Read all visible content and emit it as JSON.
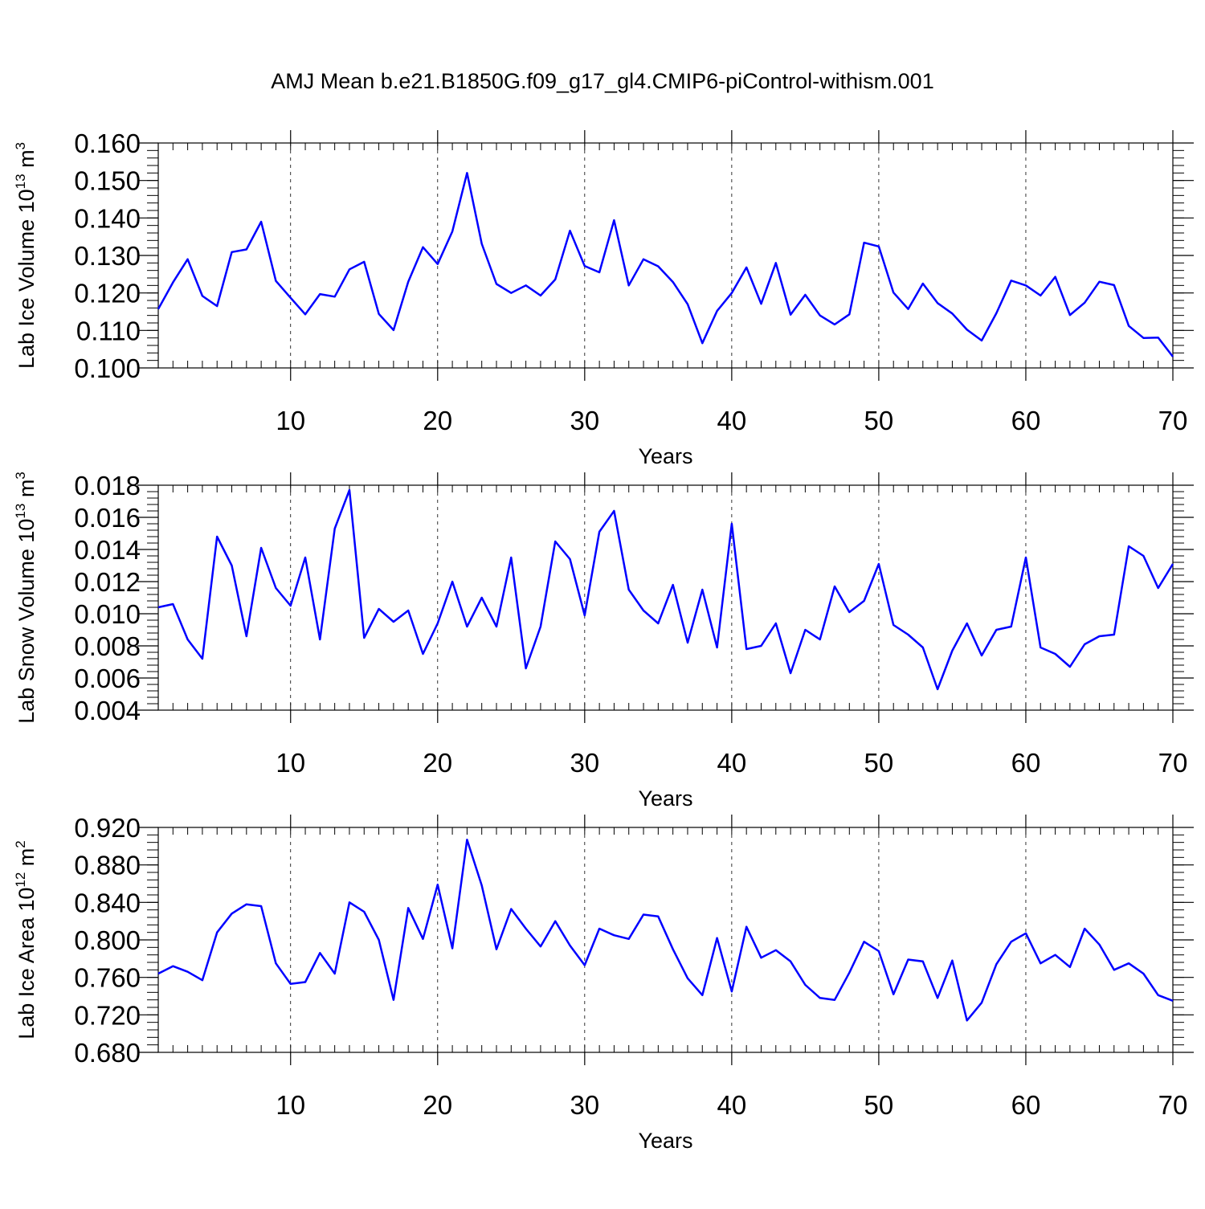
{
  "title": "AMJ Mean b.e21.B1850G.f09_g17_gl4.CMIP6-piControl-withism.001",
  "line_color": "#0000ff",
  "chart_data": [
    {
      "type": "line",
      "ylabel": {
        "text": "Lab Ice Volume 10",
        "exp": "13",
        "unit": " m",
        "unit_exp": "3"
      },
      "xlabel": "Years",
      "xlim": [
        1,
        70
      ],
      "ylim": [
        0.1,
        0.16
      ],
      "yticks": [
        0.1,
        0.11,
        0.12,
        0.13,
        0.14,
        0.15,
        0.16
      ],
      "ytick_labels": [
        "0.100",
        "0.110",
        "0.120",
        "0.130",
        "0.140",
        "0.150",
        "0.160"
      ],
      "xticks": [
        10,
        20,
        30,
        40,
        50,
        60,
        70
      ],
      "xtick_labels": [
        "10",
        "20",
        "30",
        "40",
        "50",
        "60",
        "70"
      ],
      "grid": "vertical-dashed",
      "series": [
        {
          "x": [
            1,
            2,
            3,
            4,
            5,
            6,
            7,
            8,
            9,
            10,
            11,
            12,
            13,
            14,
            15,
            16,
            17,
            18,
            19,
            20,
            21,
            22,
            23,
            24,
            25,
            26,
            27,
            28,
            29,
            30,
            31,
            32,
            33,
            34,
            35,
            36,
            37,
            38,
            39,
            40,
            41,
            42,
            43,
            44,
            45,
            46,
            47,
            48,
            49,
            50,
            51,
            52,
            53,
            54,
            55,
            56,
            57,
            58,
            59,
            60,
            61,
            62,
            63,
            64,
            65,
            66,
            67,
            68,
            69,
            70
          ],
          "values": [
            0.1157,
            0.1228,
            0.129,
            0.1192,
            0.1165,
            0.1309,
            0.1316,
            0.139,
            0.1232,
            0.1187,
            0.1143,
            0.1197,
            0.119,
            0.1263,
            0.1283,
            0.1144,
            0.1101,
            0.123,
            0.1322,
            0.1277,
            0.1364,
            0.152,
            0.1331,
            0.1224,
            0.12,
            0.122,
            0.1193,
            0.1236,
            0.1366,
            0.1272,
            0.1255,
            0.1394,
            0.122,
            0.129,
            0.1271,
            0.1229,
            0.117,
            0.1066,
            0.1152,
            0.12,
            0.1268,
            0.1171,
            0.128,
            0.1142,
            0.1195,
            0.114,
            0.1116,
            0.1143,
            0.1334,
            0.1324,
            0.1201,
            0.1157,
            0.1225,
            0.1173,
            0.1145,
            0.1102,
            0.1073,
            0.1146,
            0.1233,
            0.122,
            0.1193,
            0.1243,
            0.1141,
            0.1174,
            0.123,
            0.1221,
            0.1112,
            0.108,
            0.1081,
            0.103
          ]
        }
      ]
    },
    {
      "type": "line",
      "ylabel": {
        "text": "Lab Snow Volume 10",
        "exp": "13",
        "unit": " m",
        "unit_exp": "3"
      },
      "xlabel": "Years",
      "xlim": [
        1,
        70
      ],
      "ylim": [
        0.004,
        0.018
      ],
      "yticks": [
        0.004,
        0.006,
        0.008,
        0.01,
        0.012,
        0.014,
        0.016,
        0.018
      ],
      "ytick_labels": [
        "0.004",
        "0.006",
        "0.008",
        "0.010",
        "0.012",
        "0.014",
        "0.016",
        "0.018"
      ],
      "xticks": [
        10,
        20,
        30,
        40,
        50,
        60,
        70
      ],
      "xtick_labels": [
        "10",
        "20",
        "30",
        "40",
        "50",
        "60",
        "70"
      ],
      "grid": "vertical-dashed",
      "series": [
        {
          "x": [
            1,
            2,
            3,
            4,
            5,
            6,
            7,
            8,
            9,
            10,
            11,
            12,
            13,
            14,
            15,
            16,
            17,
            18,
            19,
            20,
            21,
            22,
            23,
            24,
            25,
            26,
            27,
            28,
            29,
            30,
            31,
            32,
            33,
            34,
            35,
            36,
            37,
            38,
            39,
            40,
            41,
            42,
            43,
            44,
            45,
            46,
            47,
            48,
            49,
            50,
            51,
            52,
            53,
            54,
            55,
            56,
            57,
            58,
            59,
            60,
            61,
            62,
            63,
            64,
            65,
            66,
            67,
            68,
            69,
            70
          ],
          "values": [
            0.0104,
            0.0106,
            0.0084,
            0.0072,
            0.0148,
            0.013,
            0.0086,
            0.0141,
            0.0116,
            0.0105,
            0.0135,
            0.0084,
            0.0153,
            0.0177,
            0.0085,
            0.0103,
            0.0095,
            0.0102,
            0.0075,
            0.0094,
            0.012,
            0.0092,
            0.011,
            0.0092,
            0.0135,
            0.0066,
            0.0092,
            0.0145,
            0.0134,
            0.0099,
            0.0151,
            0.0164,
            0.0115,
            0.0102,
            0.0094,
            0.0118,
            0.0082,
            0.0115,
            0.0079,
            0.0156,
            0.0078,
            0.008,
            0.0094,
            0.0063,
            0.009,
            0.0084,
            0.0117,
            0.0101,
            0.0108,
            0.0131,
            0.0093,
            0.0087,
            0.0079,
            0.0053,
            0.0077,
            0.0094,
            0.0074,
            0.009,
            0.0092,
            0.0135,
            0.0079,
            0.0075,
            0.0067,
            0.0081,
            0.0086,
            0.0087,
            0.0142,
            0.0136,
            0.0116,
            0.0131
          ]
        }
      ]
    },
    {
      "type": "line",
      "ylabel": {
        "text": "Lab Ice Area 10",
        "exp": "12",
        "unit": " m",
        "unit_exp": "2"
      },
      "xlabel": "Years",
      "xlim": [
        1,
        70
      ],
      "ylim": [
        0.68,
        0.92
      ],
      "yticks": [
        0.68,
        0.72,
        0.76,
        0.8,
        0.84,
        0.88,
        0.92
      ],
      "ytick_labels": [
        "0.680",
        "0.720",
        "0.760",
        "0.800",
        "0.840",
        "0.880",
        "0.920"
      ],
      "xticks": [
        10,
        20,
        30,
        40,
        50,
        60,
        70
      ],
      "xtick_labels": [
        "10",
        "20",
        "30",
        "40",
        "50",
        "60",
        "70"
      ],
      "grid": "vertical-dashed",
      "series": [
        {
          "x": [
            1,
            2,
            3,
            4,
            5,
            6,
            7,
            8,
            9,
            10,
            11,
            12,
            13,
            14,
            15,
            16,
            17,
            18,
            19,
            20,
            21,
            22,
            23,
            24,
            25,
            26,
            27,
            28,
            29,
            30,
            31,
            32,
            33,
            34,
            35,
            36,
            37,
            38,
            39,
            40,
            41,
            42,
            43,
            44,
            45,
            46,
            47,
            48,
            49,
            50,
            51,
            52,
            53,
            54,
            55,
            56,
            57,
            58,
            59,
            60,
            61,
            62,
            63,
            64,
            65,
            66,
            67,
            68,
            69,
            70
          ],
          "values": [
            0.764,
            0.772,
            0.766,
            0.757,
            0.808,
            0.828,
            0.838,
            0.836,
            0.775,
            0.753,
            0.755,
            0.786,
            0.764,
            0.84,
            0.83,
            0.8,
            0.736,
            0.834,
            0.801,
            0.859,
            0.791,
            0.907,
            0.858,
            0.79,
            0.833,
            0.812,
            0.793,
            0.82,
            0.794,
            0.773,
            0.812,
            0.805,
            0.801,
            0.827,
            0.825,
            0.79,
            0.759,
            0.741,
            0.802,
            0.745,
            0.814,
            0.781,
            0.789,
            0.777,
            0.752,
            0.738,
            0.736,
            0.765,
            0.798,
            0.788,
            0.742,
            0.779,
            0.777,
            0.738,
            0.778,
            0.714,
            0.733,
            0.774,
            0.798,
            0.807,
            0.775,
            0.784,
            0.771,
            0.812,
            0.795,
            0.768,
            0.775,
            0.764,
            0.741,
            0.735
          ]
        }
      ]
    }
  ]
}
